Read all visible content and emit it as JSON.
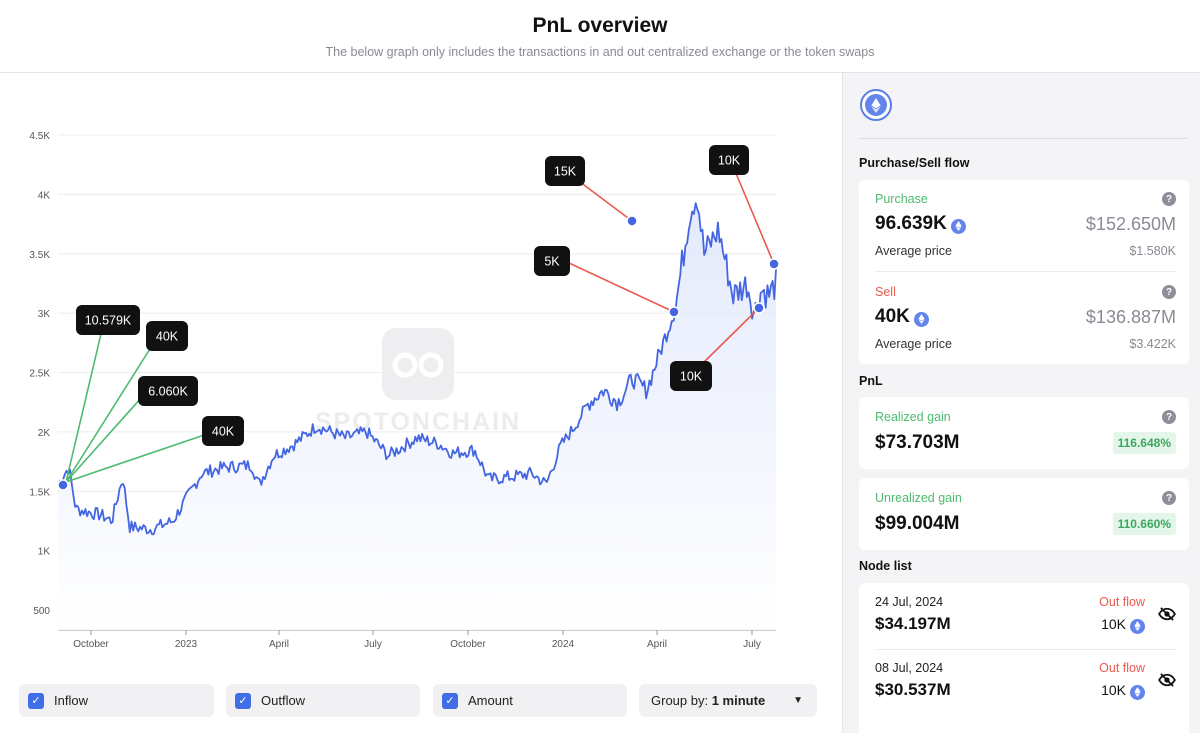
{
  "header": {
    "title": "PnL overview",
    "subtitle": "The below graph only includes the transactions in and out centralized exchange or the token swaps"
  },
  "chart_data": {
    "type": "line",
    "title": "",
    "watermark": "SPOTONCHAIN",
    "x_ticks": [
      "October",
      "2023",
      "April",
      "July",
      "October",
      "2024",
      "April",
      "July"
    ],
    "y_ticks": [
      "500",
      "1K",
      "1.5K",
      "2K",
      "2.5K",
      "3K",
      "3.5K",
      "4K",
      "4.5K"
    ],
    "ylim": [
      300,
      4700
    ],
    "line_color": "#4466e0",
    "grid": true,
    "series": [
      {
        "values_keypoints": [
          [
            0.0,
            1560
          ],
          [
            0.015,
            1700
          ],
          [
            0.025,
            1350
          ],
          [
            0.06,
            1300
          ],
          [
            0.075,
            1250
          ],
          [
            0.09,
            1620
          ],
          [
            0.1,
            1200
          ],
          [
            0.13,
            1180
          ],
          [
            0.16,
            1250
          ],
          [
            0.18,
            1450
          ],
          [
            0.2,
            1650
          ],
          [
            0.23,
            1700
          ],
          [
            0.27,
            1720
          ],
          [
            0.28,
            1550
          ],
          [
            0.3,
            1800
          ],
          [
            0.33,
            1900
          ],
          [
            0.36,
            2050
          ],
          [
            0.4,
            1950
          ],
          [
            0.43,
            2000
          ],
          [
            0.46,
            1800
          ],
          [
            0.5,
            1950
          ],
          [
            0.53,
            1900
          ],
          [
            0.55,
            1820
          ],
          [
            0.58,
            1850
          ],
          [
            0.6,
            1600
          ],
          [
            0.63,
            1620
          ],
          [
            0.66,
            1650
          ],
          [
            0.68,
            1560
          ],
          [
            0.7,
            1880
          ],
          [
            0.72,
            2050
          ],
          [
            0.74,
            2250
          ],
          [
            0.76,
            2350
          ],
          [
            0.78,
            2250
          ],
          [
            0.8,
            2450
          ],
          [
            0.82,
            2350
          ],
          [
            0.84,
            2700
          ],
          [
            0.86,
            3050
          ],
          [
            0.87,
            3450
          ],
          [
            0.88,
            3850
          ],
          [
            0.89,
            4000
          ],
          [
            0.9,
            3500
          ],
          [
            0.92,
            3700
          ],
          [
            0.94,
            3150
          ],
          [
            0.96,
            3250
          ],
          [
            0.97,
            3000
          ],
          [
            0.98,
            3200
          ],
          [
            0.99,
            3150
          ],
          [
            1.0,
            3250
          ]
        ]
      }
    ],
    "markers": [
      {
        "label": "10.579K",
        "type": "inflow"
      },
      {
        "label": "40K",
        "type": "inflow"
      },
      {
        "label": "6.060K",
        "type": "inflow"
      },
      {
        "label": "40K",
        "type": "inflow"
      },
      {
        "label": "15K",
        "type": "outflow"
      },
      {
        "label": "5K",
        "type": "outflow"
      },
      {
        "label": "10K",
        "type": "outflow"
      },
      {
        "label": "10K",
        "type": "outflow"
      }
    ]
  },
  "controls": {
    "inflow": "Inflow",
    "outflow": "Outflow",
    "amount": "Amount",
    "group_by_label": "Group by:",
    "group_by_value": "1 minute"
  },
  "side": {
    "flow_title": "Purchase/Sell flow",
    "purchase": {
      "label": "Purchase",
      "amount": "96.639K",
      "usd": "$152.650M",
      "avg_label": "Average price",
      "avg_value": "$1.580K"
    },
    "sell": {
      "label": "Sell",
      "amount": "40K",
      "usd": "$136.887M",
      "avg_label": "Average price",
      "avg_value": "$3.422K"
    },
    "pnl_title": "PnL",
    "realized": {
      "label": "Realized gain",
      "value": "$73.703M",
      "pct": "116.648%"
    },
    "unrealized": {
      "label": "Unrealized gain",
      "value": "$99.004M",
      "pct": "110.660%"
    },
    "node_title": "Node list",
    "nodes": [
      {
        "date": "24 Jul, 2024",
        "amount": "$34.197M",
        "flow": "Out flow",
        "token": "10K"
      },
      {
        "date": "08 Jul, 2024",
        "amount": "$30.537M",
        "flow": "Out flow",
        "token": "10K"
      }
    ]
  }
}
